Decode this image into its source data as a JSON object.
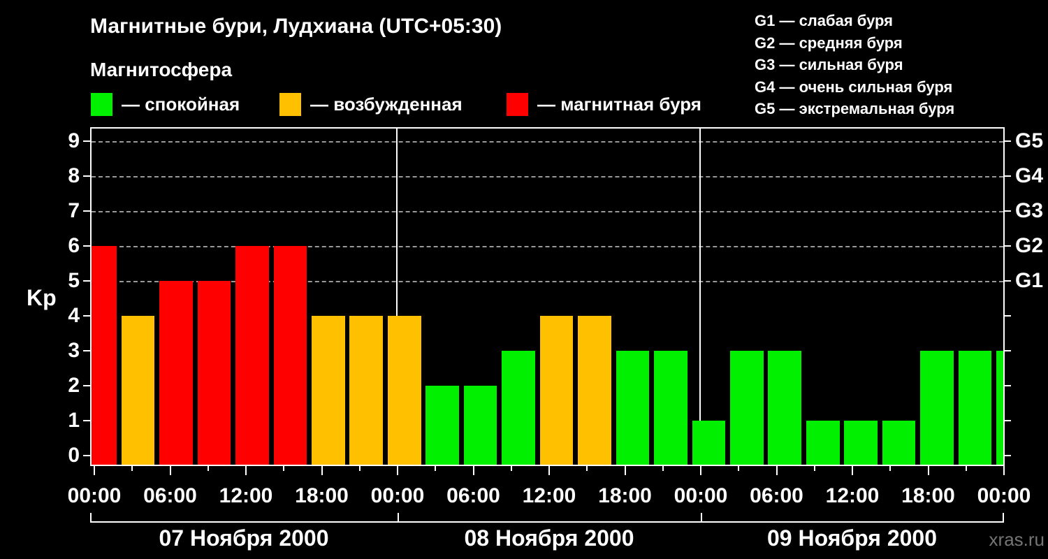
{
  "header": {
    "title": "Магнитные бури, Лудхиана (UTC+05:30)",
    "subtitle": "Магнитосфера",
    "legend": [
      {
        "name": "quiet",
        "label": "— спокойная",
        "color": "#00F000"
      },
      {
        "name": "excited",
        "label": "— возбужденная",
        "color": "#FFC000"
      },
      {
        "name": "storm",
        "label": "— магнитная буря",
        "color": "#FF0000"
      }
    ],
    "g_scale_legend": [
      "G1 — слабая буря",
      "G2 — средняя буря",
      "G3 — сильная буря",
      "G4 — очень сильная буря",
      "G5 — экстремальная буря"
    ]
  },
  "chart_data": {
    "type": "bar",
    "title": "Магнитные бури, Лудхиана (UTC+05:30)",
    "ylabel": "Kp",
    "ylim": [
      0,
      9
    ],
    "yticks": [
      0,
      1,
      2,
      3,
      4,
      5,
      6,
      7,
      8,
      9
    ],
    "right_axis_labels": [
      {
        "kp": 9,
        "label": "G5"
      },
      {
        "kp": 8,
        "label": "G4"
      },
      {
        "kp": 7,
        "label": "G3"
      },
      {
        "kp": 6,
        "label": "G2"
      },
      {
        "kp": 5,
        "label": "G1"
      }
    ],
    "gridlines_at_kp": [
      5,
      6,
      7,
      8,
      9
    ],
    "x_tick_labels": [
      "00:00",
      "06:00",
      "12:00",
      "18:00",
      "00:00",
      "06:00",
      "12:00",
      "18:00",
      "00:00",
      "06:00",
      "12:00",
      "18:00",
      "00:00"
    ],
    "bar_interval_hours": 3,
    "days": [
      {
        "date": "07 Ноября 2000",
        "kp": [
          6,
          4,
          5,
          5,
          6,
          6,
          4,
          4
        ]
      },
      {
        "date": "08 Ноября 2000",
        "kp": [
          4,
          2,
          2,
          3,
          4,
          4,
          3,
          3
        ]
      },
      {
        "date": "09 Ноября 2000",
        "kp": [
          1,
          3,
          3,
          1,
          1,
          1,
          3,
          3
        ]
      }
    ],
    "next_day_partial_bar_kp": 3,
    "colors": {
      "quiet_kp_0_3": "#00F000",
      "excited_kp_4": "#FFC000",
      "storm_kp_5_9": "#FF0000",
      "gridline": "#999999",
      "axis": "#FFFFFF",
      "background": "#000000"
    },
    "legend_position": "top-left"
  },
  "footer": {
    "watermark": "xras.ru"
  }
}
